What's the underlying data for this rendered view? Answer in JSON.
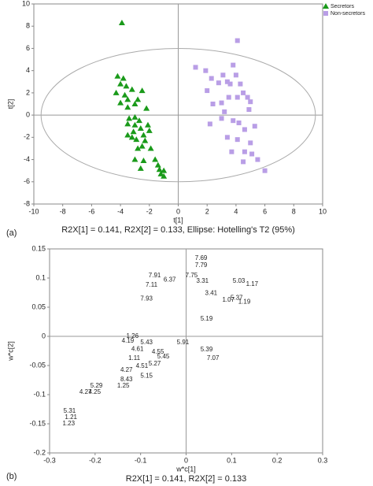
{
  "chart_data": [
    {
      "type": "scatter",
      "panel_label": "(a)",
      "x_label": "t[1]",
      "y_label": "t[2]",
      "caption": "R2X[1] = 0.141, R2X[2] = 0.133, Ellipse: Hotelling's T2 (95%)",
      "xlim": [
        -10,
        10
      ],
      "ylim": [
        -8,
        10
      ],
      "xticks": [
        -10,
        -8,
        -6,
        -4,
        -2,
        0,
        2,
        4,
        6,
        8,
        10
      ],
      "yticks": [
        -8,
        -6,
        -4,
        -2,
        0,
        2,
        4,
        6,
        8,
        10
      ],
      "ellipse": {
        "rx": 9.5,
        "ry": 6
      },
      "series": [
        {
          "name": "Secretors",
          "color": "#1a9a1a",
          "marker": "triangle",
          "x": [
            -3.9,
            -4.2,
            -3.8,
            -4,
            -3.6,
            -3.2,
            -4.3,
            -3.7,
            -3.5,
            -4,
            -2.8,
            -2.5,
            -3,
            -3.5,
            -2.2,
            -3,
            -3.4,
            -2.7,
            -3,
            -3.5,
            -2.1,
            -2.6,
            -3.1,
            -3.5,
            -2.4,
            -2.9,
            -3.2,
            -2.3,
            -2,
            -2.5,
            -1.9,
            -2.8,
            -3,
            -2.4,
            -1.6,
            -1.4,
            -1.3,
            -1,
            -1.2,
            -1,
            -2.6
          ],
          "y": [
            8.3,
            3.5,
            3.3,
            2.8,
            2.6,
            2.3,
            2,
            1.8,
            1.4,
            1.1,
            1.4,
            2.2,
            1,
            0.7,
            0.6,
            -0.2,
            -0.3,
            -0.5,
            -0.9,
            -0.8,
            -0.9,
            -1.2,
            -1.5,
            -1.8,
            -1.8,
            -2.2,
            -2,
            -2.3,
            -1.4,
            -2.8,
            -3,
            -3,
            -4,
            -4.1,
            -4,
            -4.5,
            -4.9,
            -5,
            -5.3,
            -5.5,
            -4.8
          ]
        },
        {
          "name": "Non-secretors",
          "color": "#b99ee6",
          "marker": "square",
          "x": [
            4.1,
            1.2,
            1.9,
            3.8,
            2.3,
            3.1,
            3.4,
            4,
            2.8,
            3.6,
            4.3,
            2,
            4.5,
            3.5,
            4.1,
            4.8,
            2.4,
            3,
            5,
            4.9,
            3.2,
            3.8,
            4.2,
            2.2,
            3,
            4.6,
            5.3,
            3.4,
            4.1,
            5,
            3.7,
            4.6,
            5.1,
            5.5,
            6,
            4.5
          ],
          "y": [
            6.7,
            4.3,
            4,
            4.5,
            3.3,
            3.6,
            3,
            3.6,
            2.9,
            2.8,
            2.8,
            2.2,
            2,
            1.6,
            1.6,
            1.6,
            1,
            1.1,
            1.2,
            0.5,
            0.3,
            -0.5,
            -0.7,
            -0.8,
            -0.3,
            -1.3,
            -1,
            -2,
            -2.2,
            -2.5,
            -3.3,
            -3.3,
            -3.5,
            -4,
            -5,
            -4.2
          ]
        }
      ]
    },
    {
      "type": "label-scatter",
      "panel_label": "(b)",
      "x_label": "w*c[1]",
      "y_label": "w*c[2]",
      "caption": "R2X[1] = 0.141, R2X[2] = 0.133",
      "xlim": [
        -0.3,
        0.3
      ],
      "ylim": [
        -0.2,
        0.15
      ],
      "xticks": [
        -0.3,
        -0.2,
        -0.1,
        0,
        0.1,
        0.2,
        0.3
      ],
      "yticks": [
        -0.2,
        -0.15,
        -0.1,
        -0.05,
        0,
        0.05,
        0.1,
        0.15
      ],
      "labels": [
        "7.69",
        "7.79",
        "5.03",
        "1.17",
        "7.91",
        "7.11",
        "7.93",
        "5.37",
        "1.07",
        "1.19",
        "3.41",
        "5.19",
        "1.26",
        "4.19",
        "4.61",
        "5.43",
        "4.55",
        "5.45",
        "5.91",
        "5.39",
        "7.07",
        "1.11",
        "4.51",
        "5.27",
        "4.27",
        "5.15",
        "8.43",
        "1.25",
        "5.29",
        "4.27",
        "4.25",
        "5.31",
        "1.21",
        "1.23",
        "6.37",
        "3.31",
        "7.75"
      ],
      "x": [
        0.033,
        0.033,
        0.116,
        0.145,
        -0.069,
        -0.076,
        -0.087,
        0.111,
        0.093,
        0.128,
        0.055,
        0.045,
        -0.118,
        -0.128,
        -0.107,
        -0.087,
        -0.062,
        -0.05,
        -0.007,
        0.045,
        0.059,
        -0.114,
        -0.097,
        -0.069,
        -0.131,
        -0.087,
        -0.131,
        -0.138,
        -0.197,
        -0.221,
        -0.201,
        -0.256,
        -0.253,
        -0.258,
        -0.036,
        0.036,
        0.012
      ],
      "y": [
        0.134,
        0.122,
        0.095,
        0.089,
        0.104,
        0.088,
        0.064,
        0.066,
        0.062,
        0.059,
        0.074,
        0.03,
        0,
        -0.008,
        -0.022,
        -0.011,
        -0.027,
        -0.035,
        -0.011,
        -0.023,
        -0.038,
        -0.038,
        -0.051,
        -0.047,
        -0.058,
        -0.068,
        -0.074,
        -0.085,
        -0.085,
        -0.096,
        -0.096,
        -0.128,
        -0.139,
        -0.15,
        0.097,
        0.095,
        0.104
      ]
    }
  ]
}
